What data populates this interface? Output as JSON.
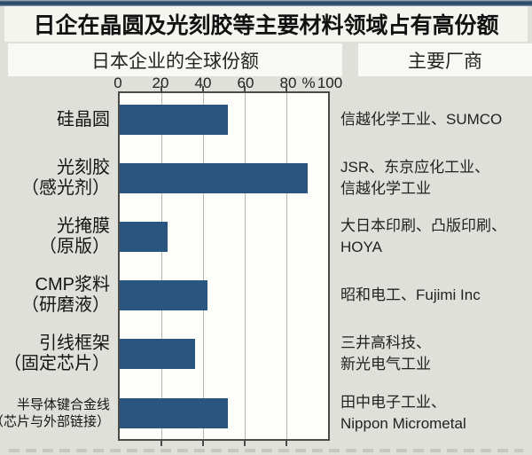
{
  "title": "日企在晶圆及光刻胶等主要材料领域占有高份额",
  "headers": {
    "left": "日本企业的全球份额",
    "right": "主要厂商"
  },
  "axis": {
    "labels": [
      "0",
      "20",
      "40",
      "60",
      "80",
      "100"
    ],
    "percent": "%"
  },
  "colors": {
    "bar": "#2a5580",
    "background": "#dfe0d9",
    "panel": "#f5f5f0",
    "top_strip": "#2c4c6a"
  },
  "chart_data": {
    "type": "bar",
    "orientation": "horizontal",
    "title": "日企在晶圆及光刻胶等主要材料领域占有高份额",
    "xlabel": "%",
    "xlim": [
      0,
      100
    ],
    "x_ticks": [
      0,
      20,
      40,
      60,
      80,
      100
    ],
    "grid": true,
    "categories": [
      "硅晶圆",
      "光刻胶（感光剂）",
      "光掩膜（原版）",
      "CMP浆料（研磨液）",
      "引线框架（固定芯片）",
      "半导体键合金线（芯片与外部链接）"
    ],
    "values": [
      52,
      90,
      23,
      42,
      36,
      52
    ],
    "rows": [
      {
        "label": "硅晶圆",
        "sublabel": "",
        "value": 52,
        "makers_line1": "信越化学工业、SUMCO",
        "makers_line2": ""
      },
      {
        "label": "光刻胶",
        "sublabel": "（感光剂）",
        "value": 90,
        "makers_line1": "JSR、东京应化工业、",
        "makers_line2": "信越化学工业"
      },
      {
        "label": "光掩膜",
        "sublabel": "（原版）",
        "value": 23,
        "makers_line1": "大日本印刷、凸版印刷、",
        "makers_line2": "HOYA"
      },
      {
        "label": "CMP浆料",
        "sublabel": "（研磨液）",
        "value": 42,
        "makers_line1": "昭和电工、Fujimi Inc",
        "makers_line2": ""
      },
      {
        "label": "引线框架",
        "sublabel": "（固定芯片）",
        "value": 36,
        "makers_line1": "三井高科技、",
        "makers_line2": "新光电气工业"
      },
      {
        "label": "半导体键合金线",
        "sublabel": "（芯片与外部链接）",
        "value": 52,
        "makers_line1": "田中电子工业、",
        "makers_line2": "Nippon Micrometal"
      }
    ]
  }
}
